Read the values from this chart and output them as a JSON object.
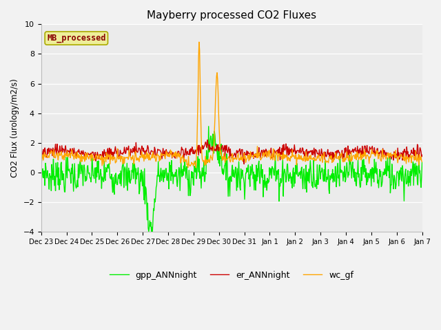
{
  "title": "Mayberry processed CO2 Fluxes",
  "ylabel": "CO2 Flux (urology/m2/s)",
  "ylim": [
    -4,
    10
  ],
  "yticks": [
    -4,
    -2,
    0,
    2,
    4,
    6,
    8,
    10
  ],
  "fig_bg_color": "#f2f2f2",
  "plot_bg_color": "#ebebeb",
  "line_colors": {
    "gpp": "#00ee00",
    "er": "#cc0000",
    "wc": "#ffa500"
  },
  "line_width": 1.0,
  "legend_labels": [
    "gpp_ANNnight",
    "er_ANNnight",
    "wc_gf"
  ],
  "inset_label": "MB_processed",
  "inset_label_color": "#880000",
  "inset_box_facecolor": "#eeee99",
  "inset_box_edgecolor": "#aaaa00",
  "total_days": 15,
  "n_points": 720,
  "seed": 7
}
